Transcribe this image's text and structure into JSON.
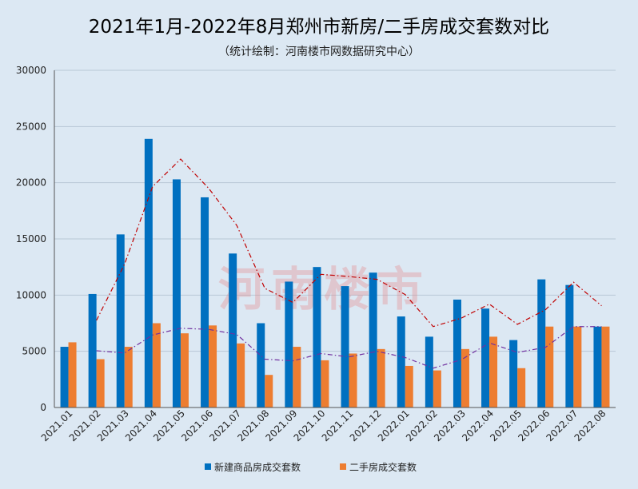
{
  "chart_data": {
    "type": "bar",
    "title": "2021年1月-2022年8月郑州市新房/二手房成交套数对比",
    "subtitle": "（统计绘制：河南楼市网数据研究中心）",
    "categories": [
      "2021.01",
      "2021.02",
      "2021.03",
      "2021.04",
      "2021.05",
      "2021.06",
      "2021.07",
      "2021.08",
      "2021.09",
      "2021.10",
      "2021.11",
      "2021.12",
      "2022.01",
      "2022.02",
      "2022.03",
      "2022.04",
      "2022.05",
      "2022.06",
      "2022.07",
      "2022.08"
    ],
    "series": [
      {
        "name": "新建商品房成交套数",
        "color": "#0070c0",
        "values": [
          5400,
          10100,
          15400,
          23900,
          20300,
          18700,
          13700,
          7500,
          11200,
          12500,
          10800,
          12000,
          8100,
          6300,
          9600,
          8800,
          6000,
          11400,
          10900,
          7200
        ]
      },
      {
        "name": "二手房成交套数",
        "color": "#ed7d31",
        "values": [
          5800,
          4300,
          5400,
          7500,
          6600,
          7300,
          5700,
          2900,
          5400,
          4200,
          4800,
          5200,
          3700,
          3300,
          5200,
          6300,
          3500,
          7200,
          7200,
          7200
        ]
      }
    ],
    "trendlines": [
      {
        "series": "新建商品房成交套数",
        "style": "dash-dot",
        "color": "#c00000"
      },
      {
        "series": "二手房成交套数",
        "style": "dash-dot",
        "color": "#7030a0"
      }
    ],
    "ylim": [
      0,
      30000
    ],
    "yticks": [
      0,
      5000,
      10000,
      15000,
      20000,
      25000,
      30000
    ],
    "grid": true,
    "legend": "bottom",
    "xlabel": "",
    "ylabel": ""
  },
  "watermark": "河南楼市"
}
